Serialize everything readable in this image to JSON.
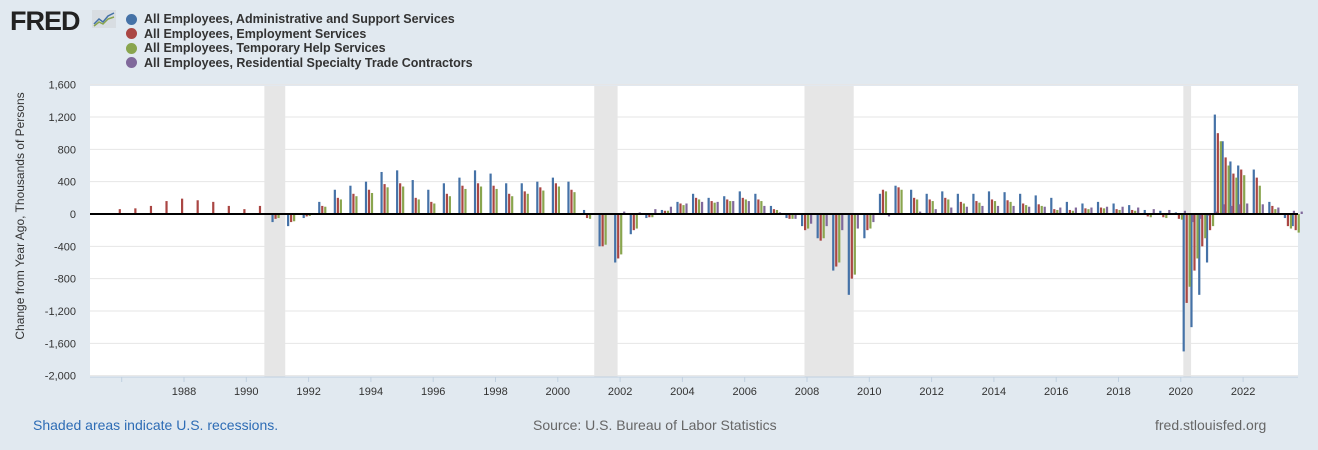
{
  "logo": "FRED",
  "footer": {
    "recession_note": "Shaded areas indicate U.S. recessions.",
    "source": "Source: U.S. Bureau of Labor Statistics",
    "site": "fred.stlouisfed.org"
  },
  "chart_data": {
    "type": "bar",
    "ylabel": "Change from Year Ago, Thousands of Persons",
    "ylim": [
      -2000,
      1600
    ],
    "yticks": [
      -2000,
      -1600,
      -1200,
      -800,
      -400,
      0,
      400,
      800,
      1200,
      1600
    ],
    "ytick_labels": [
      "-2,000",
      "-1,600",
      "-1,200",
      "-800",
      "-400",
      "0",
      "400",
      "800",
      "1,200",
      "1,600"
    ],
    "xlim": [
      1985,
      2023.8
    ],
    "xticks": [
      1988,
      1990,
      1992,
      1994,
      1996,
      1998,
      2000,
      2002,
      2004,
      2006,
      2008,
      2010,
      2012,
      2014,
      2016,
      2018,
      2020,
      2022
    ],
    "xtick_labels": [
      "1988",
      "1990",
      "1992",
      "1994",
      "1996",
      "1998",
      "2000",
      "2002",
      "2004",
      "2006",
      "2008",
      "2010",
      "2012",
      "2014",
      "2016",
      "2018",
      "2020",
      "2022"
    ],
    "recessions": [
      [
        1990.58,
        1991.25
      ],
      [
        2001.17,
        2001.92
      ],
      [
        2007.92,
        2009.5
      ],
      [
        2020.08,
        2020.33
      ]
    ],
    "legend_position": "top-left",
    "x": [
      1986,
      1986.5,
      1987,
      1987.5,
      1988,
      1988.5,
      1989,
      1989.5,
      1990,
      1990.5,
      1991,
      1991.5,
      1992,
      1992.5,
      1993,
      1993.5,
      1994,
      1994.5,
      1995,
      1995.5,
      1996,
      1996.5,
      1997,
      1997.5,
      1998,
      1998.5,
      1999,
      1999.5,
      2000,
      2000.5,
      2001,
      2001.5,
      2002,
      2002.5,
      2003,
      2003.5,
      2004,
      2004.5,
      2005,
      2005.5,
      2006,
      2006.5,
      2007,
      2007.5,
      2008,
      2008.5,
      2009,
      2009.5,
      2010,
      2010.5,
      2011,
      2011.5,
      2012,
      2012.5,
      2013,
      2013.5,
      2014,
      2014.5,
      2015,
      2015.5,
      2016,
      2016.5,
      2017,
      2017.5,
      2018,
      2018.5,
      2019,
      2019.5,
      2020,
      2020.25,
      2020.5,
      2020.75,
      2021,
      2021.25,
      2021.5,
      2021.75,
      2022,
      2022.5,
      2023,
      2023.5,
      2023.75
    ],
    "series": [
      {
        "name": "All Employees, Administrative and Support Services",
        "color": "#4572a7",
        "values": [
          null,
          null,
          null,
          null,
          null,
          null,
          null,
          null,
          null,
          null,
          -100,
          -150,
          -50,
          150,
          300,
          350,
          400,
          520,
          540,
          420,
          300,
          380,
          450,
          540,
          500,
          380,
          380,
          400,
          450,
          400,
          50,
          -400,
          -600,
          -250,
          -50,
          50,
          150,
          250,
          200,
          220,
          280,
          250,
          100,
          -50,
          -150,
          -300,
          -700,
          -1000,
          -300,
          250,
          350,
          300,
          250,
          280,
          250,
          250,
          280,
          270,
          250,
          230,
          200,
          150,
          130,
          150,
          130,
          110,
          50,
          40,
          20,
          -1700,
          -1400,
          -1000,
          -600,
          1230,
          900,
          650,
          600,
          550,
          150,
          -50,
          -150
        ]
      },
      {
        "name": "All Employees, Employment Services",
        "color": "#aa4643",
        "values": [
          60,
          70,
          100,
          160,
          190,
          170,
          150,
          100,
          60,
          100,
          -60,
          -100,
          -30,
          100,
          200,
          250,
          300,
          370,
          380,
          200,
          150,
          250,
          350,
          380,
          350,
          250,
          280,
          330,
          380,
          300,
          -50,
          -400,
          -550,
          -200,
          -40,
          40,
          130,
          200,
          160,
          180,
          200,
          180,
          60,
          -60,
          -200,
          -330,
          -650,
          -800,
          -200,
          300,
          330,
          200,
          180,
          200,
          150,
          160,
          180,
          170,
          130,
          120,
          60,
          50,
          70,
          80,
          60,
          50,
          -30,
          -40,
          -60,
          -1100,
          -700,
          -400,
          -200,
          1000,
          700,
          500,
          550,
          450,
          100,
          -150,
          -200
        ]
      },
      {
        "name": "All Employees, Temporary Help Services",
        "color": "#89a54e",
        "values": [
          null,
          null,
          null,
          null,
          null,
          null,
          null,
          null,
          null,
          null,
          -50,
          -90,
          -25,
          90,
          180,
          220,
          260,
          330,
          340,
          180,
          130,
          220,
          310,
          340,
          310,
          220,
          250,
          290,
          340,
          270,
          -60,
          -380,
          -500,
          -180,
          -40,
          40,
          110,
          180,
          140,
          160,
          180,
          160,
          50,
          -60,
          -180,
          -300,
          -600,
          -750,
          -180,
          280,
          300,
          180,
          160,
          180,
          130,
          140,
          160,
          150,
          110,
          100,
          50,
          40,
          60,
          70,
          50,
          40,
          -40,
          -50,
          -70,
          -900,
          -550,
          -300,
          -150,
          900,
          600,
          450,
          480,
          350,
          60,
          -180,
          -230
        ]
      },
      {
        "name": "All Employees, Residential Specialty Trade Contractors",
        "color": "#80699b",
        "values": [
          null,
          null,
          null,
          null,
          null,
          null,
          null,
          null,
          null,
          null,
          null,
          null,
          null,
          null,
          null,
          null,
          null,
          null,
          null,
          null,
          null,
          null,
          null,
          null,
          null,
          null,
          null,
          null,
          null,
          null,
          null,
          null,
          30,
          20,
          60,
          90,
          130,
          150,
          150,
          160,
          160,
          100,
          20,
          -60,
          -120,
          -150,
          -200,
          -180,
          -100,
          -30,
          0,
          30,
          60,
          80,
          90,
          100,
          100,
          100,
          90,
          90,
          80,
          80,
          80,
          90,
          90,
          80,
          60,
          50,
          40,
          -100,
          -60,
          -20,
          30,
          120,
          100,
          120,
          130,
          120,
          80,
          40,
          30
        ]
      }
    ]
  }
}
